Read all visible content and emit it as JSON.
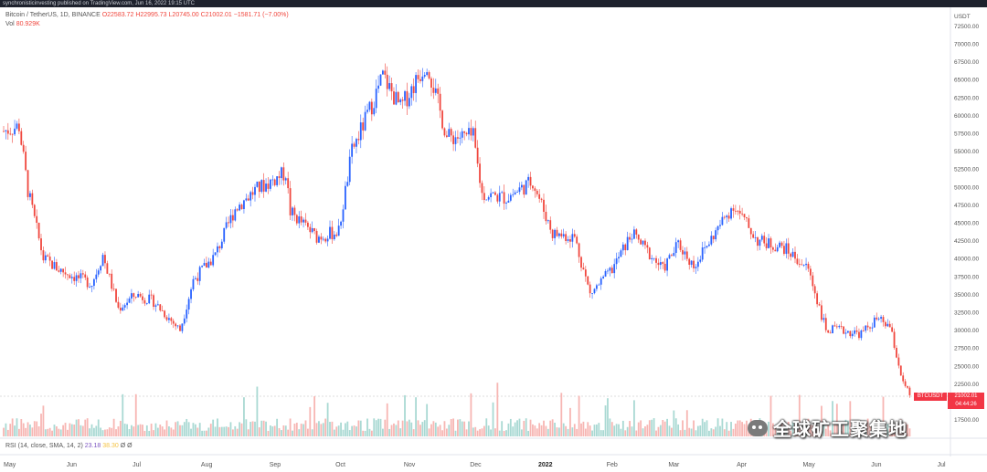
{
  "header": {
    "publisher": "synchronisticinvesting published on TradingView.com, Jun 16, 2022 19:15 UTC"
  },
  "legend": {
    "symbol": "Bitcoin / TetherUS, 1D, BINANCE",
    "open": "O22583.72",
    "high": "H22995.73",
    "low": "L20745.00",
    "close": "C21002.01",
    "change": "−1581.71 (−7.00%)",
    "vol_label": "Vol",
    "vol_value": "80.929K"
  },
  "rsi": {
    "label": "RSI (14, close, SMA, 14, 2)",
    "value1": "23.18",
    "value2": "38.30",
    "value3": "Ø",
    "value4": "Ø"
  },
  "price_tag": {
    "symbol": "BTCUSDT",
    "price": "21002.01",
    "countdown": "04:44:26"
  },
  "watermark": {
    "text": "全球矿工聚集地",
    "icon": "wechat-icon"
  },
  "colors": {
    "up": "#2962ff",
    "down": "#f0473e",
    "vol_up": "#a9d9d3",
    "vol_down": "#f7b6b3"
  },
  "chart_data": {
    "type": "candlestick",
    "y_axis": {
      "unit": "USDT",
      "ticks": [
        17500,
        20000,
        22500,
        25000,
        27500,
        30000,
        32500,
        35000,
        37500,
        40000,
        42500,
        45000,
        47500,
        50000,
        52500,
        55000,
        57500,
        60000,
        62500,
        65000,
        67500,
        70000,
        72500
      ],
      "ylim": [
        15000,
        74000
      ]
    },
    "x_axis": {
      "ticks": [
        "May",
        "Jun",
        "Jul",
        "Aug",
        "Sep",
        "Oct",
        "Nov",
        "Dec",
        "2022",
        "Feb",
        "Mar",
        "Apr",
        "May",
        "Jun",
        "Jul"
      ],
      "bold": [
        "2022"
      ]
    },
    "series_close": [
      {
        "date": "2021-05-01",
        "close": 57800
      },
      {
        "date": "2021-05-08",
        "close": 58500
      },
      {
        "date": "2021-05-12",
        "close": 49500
      },
      {
        "date": "2021-05-19",
        "close": 40000
      },
      {
        "date": "2021-05-26",
        "close": 38500
      },
      {
        "date": "2021-06-02",
        "close": 37500
      },
      {
        "date": "2021-06-10",
        "close": 36500
      },
      {
        "date": "2021-06-15",
        "close": 40500
      },
      {
        "date": "2021-06-22",
        "close": 33000
      },
      {
        "date": "2021-06-30",
        "close": 35000
      },
      {
        "date": "2021-07-08",
        "close": 34000
      },
      {
        "date": "2021-07-20",
        "close": 30000
      },
      {
        "date": "2021-07-26",
        "close": 37000
      },
      {
        "date": "2021-08-05",
        "close": 40500
      },
      {
        "date": "2021-08-14",
        "close": 47000
      },
      {
        "date": "2021-08-23",
        "close": 49500
      },
      {
        "date": "2021-09-06",
        "close": 52000
      },
      {
        "date": "2021-09-08",
        "close": 46500
      },
      {
        "date": "2021-09-20",
        "close": 43000
      },
      {
        "date": "2021-09-30",
        "close": 43800
      },
      {
        "date": "2021-10-06",
        "close": 55000
      },
      {
        "date": "2021-10-15",
        "close": 61500
      },
      {
        "date": "2021-10-20",
        "close": 65500
      },
      {
        "date": "2021-10-28",
        "close": 61000
      },
      {
        "date": "2021-11-09",
        "close": 67500
      },
      {
        "date": "2021-11-18",
        "close": 57000
      },
      {
        "date": "2021-11-30",
        "close": 57000
      },
      {
        "date": "2021-12-04",
        "close": 49000
      },
      {
        "date": "2021-12-15",
        "close": 48500
      },
      {
        "date": "2021-12-27",
        "close": 50800
      },
      {
        "date": "2022-01-05",
        "close": 43500
      },
      {
        "date": "2022-01-15",
        "close": 43000
      },
      {
        "date": "2022-01-22",
        "close": 35000
      },
      {
        "date": "2022-02-01",
        "close": 38500
      },
      {
        "date": "2022-02-10",
        "close": 43500
      },
      {
        "date": "2022-02-24",
        "close": 38500
      },
      {
        "date": "2022-03-03",
        "close": 42000
      },
      {
        "date": "2022-03-10",
        "close": 39000
      },
      {
        "date": "2022-03-28",
        "close": 47500
      },
      {
        "date": "2022-04-08",
        "close": 42500
      },
      {
        "date": "2022-04-20",
        "close": 41500
      },
      {
        "date": "2022-05-01",
        "close": 38500
      },
      {
        "date": "2022-05-09",
        "close": 30000
      },
      {
        "date": "2022-05-15",
        "close": 30000
      },
      {
        "date": "2022-05-25",
        "close": 29500
      },
      {
        "date": "2022-06-01",
        "close": 31500
      },
      {
        "date": "2022-06-07",
        "close": 30500
      },
      {
        "date": "2022-06-13",
        "close": 22500
      },
      {
        "date": "2022-06-16",
        "close": 21002.01
      }
    ]
  }
}
